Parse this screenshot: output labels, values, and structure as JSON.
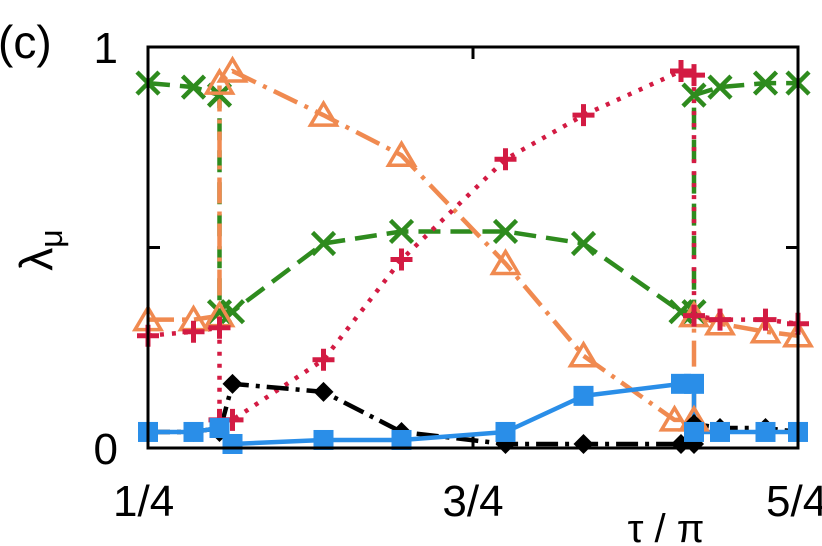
{
  "panel_label": "(c)",
  "chart_data": {
    "type": "line",
    "ylabel_main": "λ",
    "ylabel_sub": "μ",
    "xlabel": "τ / π",
    "xlim": [
      0.25,
      1.25
    ],
    "ylim": [
      0,
      1
    ],
    "x_ticks": [
      {
        "value": 0.25,
        "label": "1/4"
      },
      {
        "value": 0.75,
        "label": "3/4"
      },
      {
        "value": 1.25,
        "label": "5/4"
      }
    ],
    "y_ticks": [
      {
        "value": 0,
        "label": "0"
      },
      {
        "value": 0.5,
        "label": ""
      },
      {
        "value": 1,
        "label": "1"
      }
    ],
    "series": [
      {
        "marker": "cross",
        "color": "#2e8b1e",
        "dash": "22 10",
        "points": [
          [
            0.25,
            0.91
          ],
          [
            0.32,
            0.9
          ],
          [
            0.36,
            0.88
          ],
          [
            0.36,
            0.34
          ],
          [
            0.38,
            0.34
          ],
          [
            0.52,
            0.51
          ],
          [
            0.64,
            0.54
          ],
          [
            0.8,
            0.54
          ],
          [
            0.92,
            0.51
          ],
          [
            1.07,
            0.34
          ],
          [
            1.09,
            0.34
          ],
          [
            1.09,
            0.88
          ],
          [
            1.13,
            0.9
          ],
          [
            1.2,
            0.91
          ],
          [
            1.25,
            0.91
          ]
        ]
      },
      {
        "marker": "triangle",
        "color": "#f08a50",
        "dash": "26 8 4 8",
        "points": [
          [
            0.25,
            0.32
          ],
          [
            0.32,
            0.32
          ],
          [
            0.36,
            0.33
          ],
          [
            0.36,
            0.91
          ],
          [
            0.38,
            0.94
          ],
          [
            0.52,
            0.83
          ],
          [
            0.64,
            0.73
          ],
          [
            0.8,
            0.46
          ],
          [
            0.92,
            0.23
          ],
          [
            1.06,
            0.07
          ],
          [
            1.09,
            0.07
          ],
          [
            1.09,
            0.33
          ],
          [
            1.13,
            0.31
          ],
          [
            1.2,
            0.29
          ],
          [
            1.25,
            0.28
          ]
        ]
      },
      {
        "marker": "plus",
        "color": "#d31b43",
        "dash": "4 8",
        "points": [
          [
            0.25,
            0.28
          ],
          [
            0.32,
            0.29
          ],
          [
            0.36,
            0.3
          ],
          [
            0.36,
            0.07
          ],
          [
            0.38,
            0.07
          ],
          [
            0.52,
            0.22
          ],
          [
            0.64,
            0.47
          ],
          [
            0.8,
            0.72
          ],
          [
            0.92,
            0.83
          ],
          [
            1.07,
            0.94
          ],
          [
            1.09,
            0.93
          ],
          [
            1.09,
            0.33
          ],
          [
            1.13,
            0.32
          ],
          [
            1.2,
            0.32
          ],
          [
            1.25,
            0.31
          ]
        ]
      },
      {
        "marker": "diamond",
        "color": "#000000",
        "dash": "22 7 4 7",
        "points": [
          [
            0.25,
            0.04
          ],
          [
            0.32,
            0.04
          ],
          [
            0.36,
            0.05
          ],
          [
            0.36,
            0.04
          ],
          [
            0.38,
            0.16
          ],
          [
            0.52,
            0.14
          ],
          [
            0.64,
            0.04
          ],
          [
            0.8,
            0.01
          ],
          [
            0.92,
            0.01
          ],
          [
            1.07,
            0.01
          ],
          [
            1.09,
            0.01
          ],
          [
            1.09,
            0.06
          ],
          [
            1.13,
            0.05
          ],
          [
            1.2,
            0.05
          ],
          [
            1.25,
            0.04
          ]
        ]
      },
      {
        "marker": "square",
        "color": "#2a8ee8",
        "dash": "",
        "points": [
          [
            0.25,
            0.04
          ],
          [
            0.32,
            0.04
          ],
          [
            0.36,
            0.05
          ],
          [
            0.36,
            0.05
          ],
          [
            0.38,
            0.01
          ],
          [
            0.52,
            0.02
          ],
          [
            0.64,
            0.02
          ],
          [
            0.8,
            0.04
          ],
          [
            0.92,
            0.13
          ],
          [
            1.07,
            0.16
          ],
          [
            1.09,
            0.16
          ],
          [
            1.09,
            0.04
          ],
          [
            1.13,
            0.04
          ],
          [
            1.2,
            0.04
          ],
          [
            1.25,
            0.04
          ]
        ]
      }
    ]
  }
}
